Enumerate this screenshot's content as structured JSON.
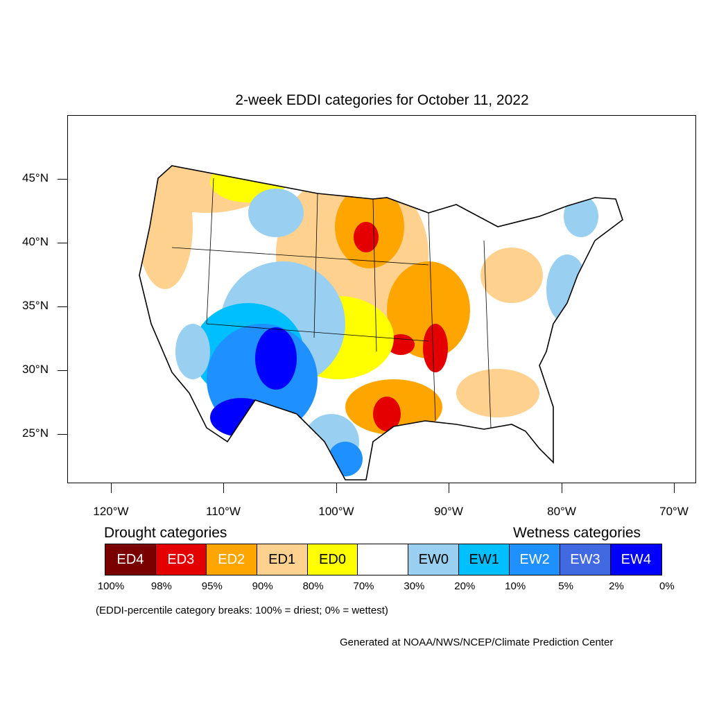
{
  "title": "2-week EDDI categories for October 11, 2022",
  "y_axis_labels": [
    "45°N",
    "40°N",
    "35°N",
    "30°N",
    "25°N"
  ],
  "x_axis_labels": [
    "120°W",
    "110°W",
    "100°W",
    "90°W",
    "80°W",
    "70°W"
  ],
  "legend": {
    "drought_header": "Drought categories",
    "wetness_header": "Wetness categories",
    "categories": [
      {
        "label": "ED4",
        "color": "#7a0000",
        "text_color": "#ffffff"
      },
      {
        "label": "ED3",
        "color": "#e50000",
        "text_color": "#ffffff"
      },
      {
        "label": "ED2",
        "color": "#ffa500",
        "text_color": "#ffffff"
      },
      {
        "label": "ED1",
        "color": "#ffd18e",
        "text_color": "#000000"
      },
      {
        "label": "ED0",
        "color": "#ffff00",
        "text_color": "#000000"
      },
      {
        "label": "",
        "color": "#ffffff",
        "text_color": "#000000"
      },
      {
        "label": "EW0",
        "color": "#99cff0",
        "text_color": "#000000"
      },
      {
        "label": "EW1",
        "color": "#00bfff",
        "text_color": "#000000"
      },
      {
        "label": "EW2",
        "color": "#1e90ff",
        "text_color": "#ffffff"
      },
      {
        "label": "EW3",
        "color": "#4169e1",
        "text_color": "#ffffff"
      },
      {
        "label": "EW4",
        "color": "#0000ff",
        "text_color": "#ffffff"
      }
    ],
    "breaks": [
      "100%",
      "98%",
      "95%",
      "90%",
      "80%",
      "70%",
      "30%",
      "20%",
      "10%",
      "5%",
      "2%",
      "0%"
    ]
  },
  "note": "(EDDI-percentile category breaks: 100% = driest; 0% = wettest)",
  "credit": "Generated at NOAA/NWS/NCEP/Climate Prediction Center"
}
